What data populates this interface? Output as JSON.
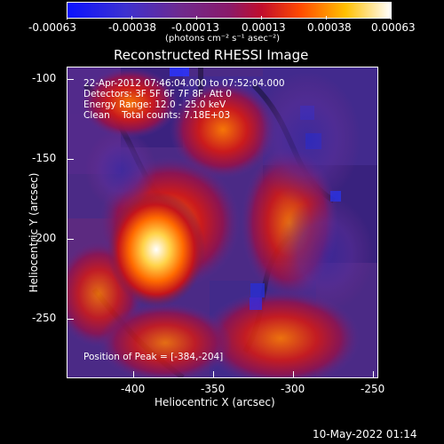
{
  "colorbar": {
    "tick_labels": [
      "-0.00063",
      "-0.00038",
      "-0.00013",
      "0.00013",
      "0.00038",
      "0.00063"
    ],
    "units": "(photons cm⁻² s⁻¹ asec⁻²)",
    "colors": [
      "#0b12ff",
      "#4d2bbd",
      "#6f2a8e",
      "#a0146a",
      "#d00e2a",
      "#ff4a00",
      "#ffc000",
      "#ffffff"
    ]
  },
  "title": "Reconstructed RHESSI Image",
  "annotations": {
    "line1": "22-Apr-2012 07:46:04.000 to 07:52:04.000",
    "line2": "Detectors: 3F 5F 6F 7F 8F, Att 0",
    "line3": "Energy Range: 12.0 - 25.0 keV",
    "line4": "Clean    Total counts: 7.18E+03",
    "peak": "Position of Peak = [-384,-204]"
  },
  "axes": {
    "x_ticks": [
      "-400",
      "-350",
      "-300",
      "-250"
    ],
    "y_ticks": [
      "-100",
      "-150",
      "-200",
      "-250"
    ],
    "x_label": "Heliocentric X (arcsec)",
    "y_label": "Heliocentric Y (arcsec)"
  },
  "footer": {
    "timestamp": "10-May-2022 01:14"
  }
}
